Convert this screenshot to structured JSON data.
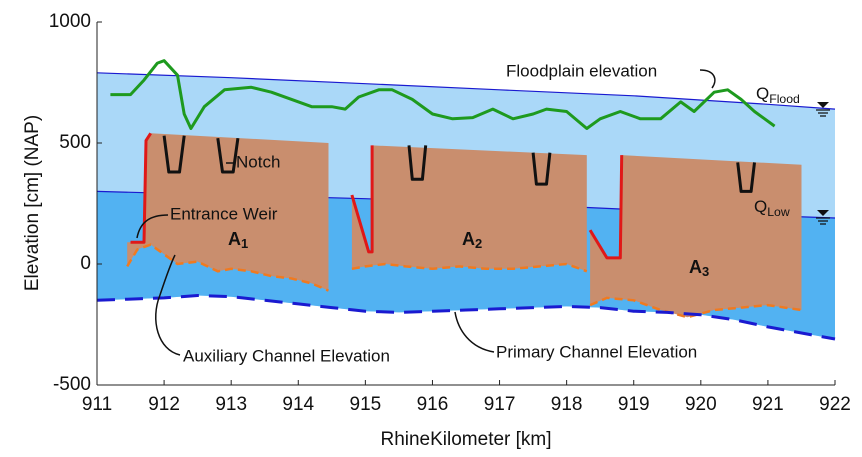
{
  "chart_data": {
    "type": "line",
    "xlabel": "RhineKilometer [km]",
    "ylabel": "Elevation [cm] (NAP)",
    "xlim": [
      911,
      922
    ],
    "ylim": [
      -500,
      1000
    ],
    "xticks": [
      911,
      912,
      913,
      914,
      915,
      916,
      917,
      918,
      919,
      920,
      921,
      922
    ],
    "yticks": [
      -500,
      0,
      500,
      1000
    ],
    "water_levels": [
      {
        "label": {
          "main": "Q",
          "sub": "Flood"
        },
        "color": "#aad8f8",
        "line_color": "#1a1ad0",
        "x": [
          911,
          913,
          915,
          917,
          919,
          921,
          922
        ],
        "values": [
          790,
          770,
          745,
          720,
          695,
          660,
          640
        ]
      },
      {
        "label": {
          "main": "Q",
          "sub": "Low"
        },
        "color": "#52b2f2",
        "line_color": "#1a1ad0",
        "x": [
          911,
          913,
          915,
          917,
          919,
          920,
          921,
          922
        ],
        "values": [
          300,
          285,
          270,
          250,
          225,
          205,
          200,
          190
        ]
      }
    ],
    "series": [
      {
        "name": "Floodplain elevation",
        "color": "#1e9a1e",
        "x": [
          911.2,
          911.5,
          911.7,
          911.9,
          912.0,
          912.2,
          912.3,
          912.4,
          912.6,
          912.9,
          913.3,
          913.6,
          913.9,
          914.2,
          914.5,
          914.7,
          914.9,
          915.2,
          915.4,
          915.7,
          916.0,
          916.3,
          916.6,
          916.9,
          917.2,
          917.5,
          917.7,
          918.0,
          918.3,
          918.5,
          918.8,
          919.1,
          919.4,
          919.7,
          919.9,
          920.2,
          920.4,
          920.6,
          920.8,
          921.1
        ],
        "values": [
          700,
          700,
          760,
          830,
          840,
          780,
          620,
          560,
          650,
          720,
          730,
          710,
          680,
          650,
          650,
          640,
          690,
          720,
          720,
          680,
          620,
          600,
          605,
          640,
          600,
          620,
          640,
          630,
          560,
          600,
          630,
          600,
          600,
          670,
          630,
          710,
          720,
          680,
          630,
          570
        ]
      },
      {
        "name": "Primary Channel Elevation",
        "color": "#1a1ad0",
        "x": [
          911,
          911.5,
          912,
          912.5,
          913,
          913.5,
          914,
          914.5,
          915,
          915.5,
          916,
          916.5,
          917,
          917.5,
          918,
          918.5,
          919,
          919.5,
          920,
          920.5,
          921,
          921.5,
          922
        ],
        "values": [
          -150,
          -145,
          -140,
          -130,
          -135,
          -150,
          -165,
          -180,
          -195,
          -200,
          -195,
          -190,
          -185,
          -180,
          -175,
          -180,
          -195,
          -200,
          -210,
          -230,
          -260,
          -285,
          -310
        ]
      },
      {
        "name": "Entrance Weir",
        "color": "#e01818",
        "x": [
          911.5,
          911.7,
          911.73,
          911.8,
          null,
          914.8,
          915.05,
          915.1,
          915.1,
          null,
          918.35,
          918.6,
          918.8,
          918.82
        ],
        "values": [
          90,
          90,
          510,
          540,
          null,
          285,
          50,
          50,
          490,
          null,
          140,
          25,
          25,
          450
        ]
      },
      {
        "name": "Notch",
        "color": "#111111",
        "x": [
          912.0,
          912.07,
          912.23,
          912.3,
          null,
          912.8,
          912.87,
          913.03,
          913.1,
          null,
          915.65,
          915.7,
          915.85,
          915.9,
          null,
          917.5,
          917.55,
          917.7,
          917.75,
          null,
          920.55,
          920.6,
          920.75,
          920.8
        ],
        "values": [
          530,
          380,
          380,
          530,
          null,
          520,
          380,
          380,
          520,
          null,
          490,
          350,
          350,
          490,
          null,
          460,
          330,
          330,
          460,
          null,
          420,
          300,
          300,
          420
        ]
      }
    ],
    "aux_label": "Auxiliary Channel Elevation",
    "aux_color": "#f07a20",
    "section_color": "#c98e6e",
    "sections": [
      {
        "label": {
          "main": "A",
          "sub": "1"
        },
        "x": [
          911.45,
          911.6,
          911.8,
          912.0,
          912.2,
          912.5,
          912.8,
          913.0,
          913.3,
          913.6,
          913.9,
          914.2,
          914.45
        ],
        "values": [
          -10,
          60,
          80,
          40,
          0,
          10,
          -30,
          -20,
          -30,
          -50,
          -60,
          -80,
          -110
        ],
        "top_x": [
          911.45,
          911.7,
          911.73,
          911.8,
          914.45
        ],
        "top": [
          90,
          90,
          510,
          540,
          500
        ]
      },
      {
        "label": {
          "main": "A",
          "sub": "2"
        },
        "x": [
          914.8,
          915.0,
          915.3,
          915.6,
          916.0,
          916.4,
          916.8,
          917.2,
          917.6,
          918.0,
          918.3
        ],
        "values": [
          -20,
          -10,
          0,
          -10,
          -20,
          -10,
          -20,
          -20,
          -10,
          0,
          -30
        ],
        "top_x": [
          914.8,
          915.05,
          915.1,
          915.1,
          918.3
        ],
        "top": [
          285,
          50,
          50,
          490,
          450
        ]
      },
      {
        "label": {
          "main": "A",
          "sub": "3"
        },
        "x": [
          918.35,
          918.6,
          919.0,
          919.4,
          919.8,
          920.2,
          920.6,
          921.0,
          921.5
        ],
        "values": [
          -170,
          -140,
          -150,
          -190,
          -220,
          -190,
          -180,
          -170,
          -190
        ],
        "top_x": [
          918.35,
          918.6,
          918.8,
          918.82,
          921.5
        ],
        "top": [
          140,
          25,
          25,
          450,
          410
        ]
      }
    ]
  }
}
